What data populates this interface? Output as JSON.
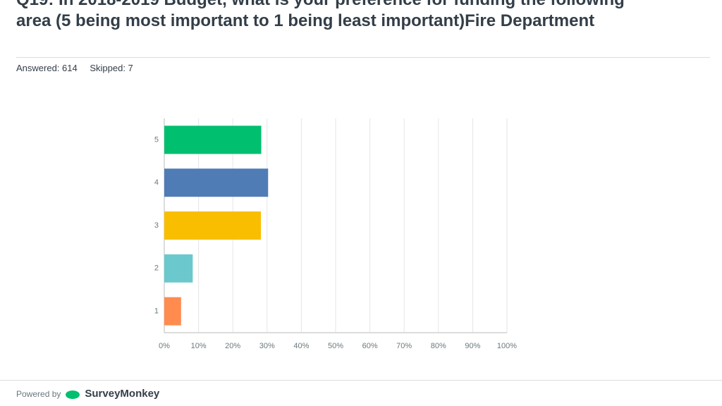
{
  "header": {
    "title": "Q19: In 2018-2019 Budget, what is your preference for funding the following area (5 being most important to 1 being least important)Fire Department",
    "answered": "Answered: 614",
    "skipped": "Skipped: 7"
  },
  "chart_data": {
    "type": "hbar",
    "categories": [
      "5",
      "4",
      "3",
      "2",
      "1"
    ],
    "values": [
      28.3,
      30.3,
      28.2,
      8.3,
      4.9
    ],
    "colors": [
      "#00bf6f",
      "#507cb6",
      "#f9be00",
      "#6bc8cd",
      "#ff8b4f"
    ],
    "xlim": [
      0,
      100
    ],
    "xticks": [
      {
        "value": 0,
        "label": "0%"
      },
      {
        "value": 10,
        "label": "10%"
      },
      {
        "value": 20,
        "label": "20%"
      },
      {
        "value": 30,
        "label": "30%"
      },
      {
        "value": 40,
        "label": "40%"
      },
      {
        "value": 50,
        "label": "50%"
      },
      {
        "value": 60,
        "label": "60%"
      },
      {
        "value": 70,
        "label": "70%"
      },
      {
        "value": 80,
        "label": "80%"
      },
      {
        "value": 90,
        "label": "90%"
      },
      {
        "value": 100,
        "label": "100%"
      }
    ],
    "grid": true
  },
  "footer": {
    "powered_by": "Powered by",
    "brand": "SurveyMonkey"
  }
}
